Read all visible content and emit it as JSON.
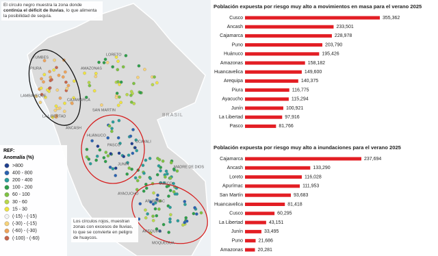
{
  "chart_data": [
    {
      "type": "bar",
      "orientation": "horizontal",
      "title": "Población expuesta por riesgo muy alto a movimientos en masa para el verano 2025",
      "categories": [
        "Cusco",
        "Ancash",
        "Cajamarca",
        "Puno",
        "Huánuco",
        "Amazonas",
        "Huancavelica",
        "Arequipa",
        "Piura",
        "Ayacucho",
        "Junín",
        "La Libertad",
        "Pasco"
      ],
      "values": [
        355362,
        233501,
        228978,
        203790,
        195426,
        158182,
        149600,
        140375,
        116775,
        115294,
        100921,
        97916,
        81766
      ],
      "value_labels": [
        "355,362",
        "233,501",
        "228,978",
        "203,790",
        "195,426",
        "158,182",
        "149,600",
        "140,375",
        "116,775",
        "115,294",
        "100,921",
        "97,916",
        "81,766"
      ],
      "color": "#e31e24"
    },
    {
      "type": "bar",
      "orientation": "horizontal",
      "title": "Población expuesta por riesgo muy alto a inundaciones para el verano 2025",
      "categories": [
        "Cajamarca",
        "Ancash",
        "Loreto",
        "Apurímac",
        "San Martín",
        "Huancavelica",
        "Cusco",
        "La Libertad",
        "Junín",
        "Puno",
        "Amazonas"
      ],
      "values": [
        237694,
        133290,
        116028,
        111953,
        93683,
        81418,
        60295,
        43151,
        33495,
        21686,
        20281
      ],
      "value_labels": [
        "237,694",
        "133,290",
        "116,028",
        "111,953",
        "93,683",
        "81,418",
        "60,295",
        "43,151",
        "33,495",
        "21,686",
        "20,281"
      ],
      "color": "#e31e24"
    }
  ],
  "map": {
    "note_black": {
      "text_1": "El círculo negro muestra la zona donde",
      "text_bold": "continúa el déficit de lluvias",
      "text_2": ", lo que alimenta la posibilidad de sequía."
    },
    "legend": {
      "title": "REF:",
      "subtitle": "Anomalía (%)",
      "items": [
        {
          "label": ">800",
          "color": "#1f3f8f"
        },
        {
          "label": "400 - 800",
          "color": "#2a62b0"
        },
        {
          "label": "200 - 400",
          "color": "#2a9d9a"
        },
        {
          "label": "100 - 200",
          "color": "#2e9e4a"
        },
        {
          "label": "60 - 100",
          "color": "#7ec242"
        },
        {
          "label": "30 - 60",
          "color": "#b9d84a"
        },
        {
          "label": "15 - 30",
          "color": "#f0e442"
        },
        {
          "label": "(-15) - (-15)",
          "color": "#f3f3f3"
        },
        {
          "label": "(-30) - (-15)",
          "color": "#f6d27a"
        },
        {
          "label": "(-60) - (-30)",
          "color": "#eea35a"
        },
        {
          "label": "(-100) - (-60)",
          "color": "#c8644a"
        }
      ]
    },
    "note_red": "Los círculos rojos, muestran zonas con excesos de lluvias, lo que se convierte en peligro de huaycos.",
    "regions": [
      "TUMBES",
      "PIURA",
      "LAMBAYEQUE",
      "CAJAMARCA",
      "LA LIBERTAD",
      "AMAZONAS",
      "LORETO",
      "SAN MARTIN",
      "ANCASH",
      "HUÁNUCO",
      "PASCO",
      "UCAYALI",
      "JUNÍN",
      "AYACUCHO",
      "APURÍMAC",
      "CUSCO",
      "MADRE DE DIOS",
      "AREQUIPA",
      "MOQUEGUA",
      "BRASIL"
    ]
  }
}
